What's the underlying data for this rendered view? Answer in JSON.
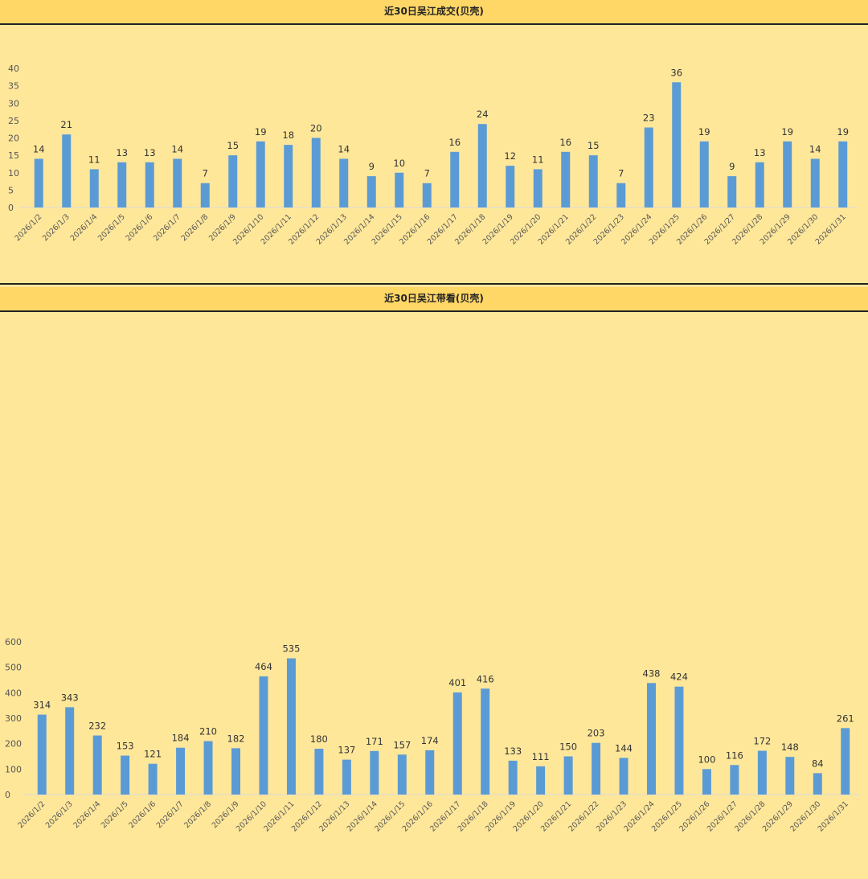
{
  "chart_data": [
    {
      "type": "bar",
      "title": "近30日吴江成交(贝壳)",
      "categories": [
        "2026/1/2",
        "2026/1/3",
        "2026/1/4",
        "2026/1/5",
        "2026/1/6",
        "2026/1/7",
        "2026/1/8",
        "2026/1/9",
        "2026/1/10",
        "2026/1/11",
        "2026/1/12",
        "2026/1/13",
        "2026/1/14",
        "2026/1/15",
        "2026/1/16",
        "2026/1/17",
        "2026/1/18",
        "2026/1/19",
        "2026/1/20",
        "2026/1/21",
        "2026/1/22",
        "2026/1/23",
        "2026/1/24",
        "2026/1/25",
        "2026/1/26",
        "2026/1/27",
        "2026/1/28",
        "2026/1/29",
        "2026/1/30",
        "2026/1/31"
      ],
      "values": [
        14,
        21,
        11,
        13,
        13,
        14,
        7,
        15,
        19,
        18,
        20,
        14,
        9,
        10,
        7,
        16,
        24,
        12,
        11,
        16,
        15,
        7,
        23,
        36,
        19,
        9,
        13,
        19,
        14,
        19
      ],
      "ylim": [
        0,
        40
      ],
      "yticks": [
        0,
        5,
        10,
        15,
        20,
        25,
        30,
        35,
        40
      ],
      "bar_color": "#5b9bd5",
      "grid": false
    },
    {
      "type": "bar",
      "title": "近30日吴江带看(贝壳)",
      "categories": [
        "2026/1/2",
        "2026/1/3",
        "2026/1/4",
        "2026/1/5",
        "2026/1/6",
        "2026/1/7",
        "2026/1/8",
        "2026/1/9",
        "2026/1/10",
        "2026/1/11",
        "2026/1/12",
        "2026/1/13",
        "2026/1/14",
        "2026/1/15",
        "2026/1/16",
        "2026/1/17",
        "2026/1/18",
        "2026/1/19",
        "2026/1/20",
        "2026/1/21",
        "2026/1/22",
        "2026/1/23",
        "2026/1/24",
        "2026/1/25",
        "2026/1/26",
        "2026/1/27",
        "2026/1/28",
        "2026/1/29",
        "2026/1/30",
        "2026/1/31"
      ],
      "values": [
        314,
        343,
        232,
        153,
        121,
        184,
        210,
        182,
        464,
        535,
        180,
        137,
        171,
        157,
        174,
        401,
        416,
        133,
        111,
        150,
        203,
        144,
        438,
        424,
        100,
        116,
        172,
        148,
        84,
        261
      ],
      "ylim": [
        0,
        600
      ],
      "yticks": [
        0,
        100,
        200,
        300,
        400,
        500,
        600
      ],
      "bar_color": "#5b9bd5",
      "grid": false
    }
  ]
}
